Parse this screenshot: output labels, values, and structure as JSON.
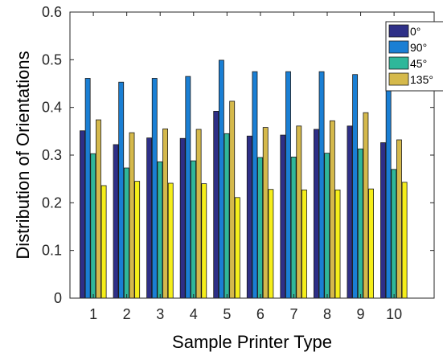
{
  "chart_data": {
    "type": "bar",
    "title": "",
    "xlabel": "Sample Printer Type",
    "ylabel": "Distribution of Orientations",
    "categories": [
      "1",
      "2",
      "3",
      "4",
      "5",
      "6",
      "7",
      "8",
      "9",
      "10"
    ],
    "xlim": [
      0.3,
      11.2
    ],
    "ylim": [
      0,
      0.6
    ],
    "yticks": [
      "0",
      "0.1",
      "0.2",
      "0.3",
      "0.4",
      "0.5",
      "0.6"
    ],
    "grid": false,
    "legend_position": "top-right",
    "series": [
      {
        "name": "0°",
        "color": "#2e2f87",
        "values": [
          0.351,
          0.322,
          0.336,
          0.335,
          0.392,
          0.34,
          0.342,
          0.354,
          0.361,
          0.326
        ]
      },
      {
        "name": "90°",
        "color": "#1a7fd4",
        "values": [
          0.461,
          0.453,
          0.461,
          0.465,
          0.499,
          0.475,
          0.475,
          0.475,
          0.469,
          0.453
        ]
      },
      {
        "name": "45°",
        "color": "#2fb79a",
        "values": [
          0.303,
          0.273,
          0.286,
          0.288,
          0.345,
          0.295,
          0.296,
          0.304,
          0.313,
          0.27
        ]
      },
      {
        "name": "135°",
        "color": "#d5b94b",
        "values": [
          0.374,
          0.347,
          0.355,
          0.354,
          0.413,
          0.358,
          0.361,
          0.372,
          0.389,
          0.332
        ]
      },
      {
        "color": "#f5ee1a",
        "values": [
          0.236,
          0.245,
          0.241,
          0.24,
          0.211,
          0.228,
          0.227,
          0.227,
          0.229,
          0.243
        ]
      }
    ]
  }
}
